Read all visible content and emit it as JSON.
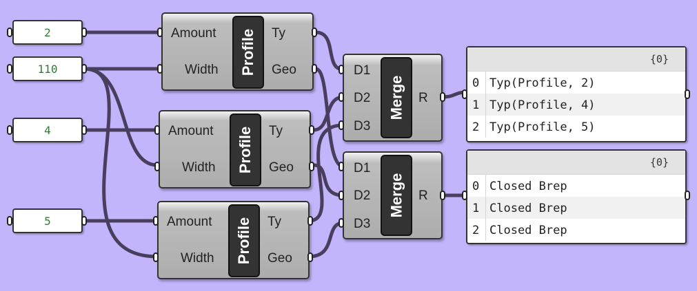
{
  "inputs": [
    {
      "id": "amount-a",
      "value": "2"
    },
    {
      "id": "width",
      "value": "110"
    },
    {
      "id": "amount-b",
      "value": "4"
    },
    {
      "id": "amount-c",
      "value": "5"
    }
  ],
  "profile_nodes": [
    {
      "name": "Profile",
      "inputs": [
        "Amount",
        "Width"
      ],
      "outputs": [
        "Ty",
        "Geo"
      ]
    },
    {
      "name": "Profile",
      "inputs": [
        "Amount",
        "Width"
      ],
      "outputs": [
        "Ty",
        "Geo"
      ]
    },
    {
      "name": "Profile",
      "inputs": [
        "Amount",
        "Width"
      ],
      "outputs": [
        "Ty",
        "Geo"
      ]
    }
  ],
  "merge_nodes": [
    {
      "name": "Merge",
      "inputs": [
        "D1",
        "D2",
        "D3"
      ],
      "output": "R"
    },
    {
      "name": "Merge",
      "inputs": [
        "D1",
        "D2",
        "D3"
      ],
      "output": "R"
    }
  ],
  "output_panels": [
    {
      "path": "{0}",
      "rows": [
        {
          "index": "0",
          "value": "Typ(Profile, 2)"
        },
        {
          "index": "1",
          "value": "Typ(Profile, 4)"
        },
        {
          "index": "2",
          "value": "Typ(Profile, 5)"
        }
      ]
    },
    {
      "path": "{0}",
      "rows": [
        {
          "index": "0",
          "value": "Closed Brep"
        },
        {
          "index": "1",
          "value": "Closed Brep"
        },
        {
          "index": "2",
          "value": "Closed Brep"
        }
      ]
    }
  ],
  "colors": {
    "canvas": "#c3b5fb",
    "wire": "#4a3e5e",
    "number_text": "#2e7d32"
  }
}
